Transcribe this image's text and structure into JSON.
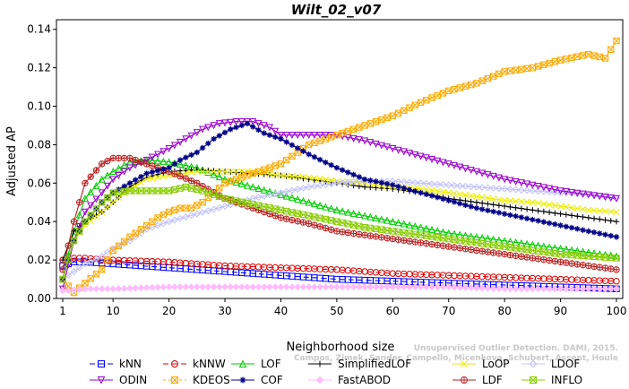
{
  "chart_data": {
    "type": "line",
    "title": "Wilt_02_v07",
    "xlabel": "Neighborhood size",
    "ylabel": "Adjusted AP",
    "xlim": [
      1,
      100
    ],
    "ylim": [
      0,
      0.145
    ],
    "xticks": [
      1,
      10,
      20,
      30,
      40,
      50,
      60,
      70,
      80,
      90,
      100
    ],
    "yticks": [
      0.0,
      0.02,
      0.04,
      0.06,
      0.08,
      0.1,
      0.12,
      0.14
    ],
    "ytick_labels": [
      "0.00",
      "0.02",
      "0.04",
      "0.06",
      "0.08",
      "0.10",
      "0.12",
      "0.14"
    ],
    "grid": false,
    "legend_position": "bottom",
    "watermark": [
      "Unsupervised Outlier Detection. DAMI, 2015.",
      "Campos, Zimek, Sander, Campello, Micenkova, Schubert, Assent, Houle"
    ],
    "series": [
      {
        "name": "kNN",
        "color": "#0000ff",
        "marker": "square",
        "dash": "6,4",
        "points": [
          [
            1,
            0.017
          ],
          [
            3,
            0.019
          ],
          [
            5,
            0.019
          ],
          [
            10,
            0.018
          ],
          [
            20,
            0.016
          ],
          [
            30,
            0.014
          ],
          [
            40,
            0.012
          ],
          [
            50,
            0.01
          ],
          [
            60,
            0.009
          ],
          [
            70,
            0.008
          ],
          [
            80,
            0.007
          ],
          [
            90,
            0.006
          ],
          [
            100,
            0.005
          ]
        ]
      },
      {
        "name": "kNNW",
        "color": "#dd0000",
        "marker": "circle",
        "dash": "6,4",
        "points": [
          [
            1,
            0.02
          ],
          [
            3,
            0.021
          ],
          [
            5,
            0.021
          ],
          [
            10,
            0.02
          ],
          [
            20,
            0.019
          ],
          [
            30,
            0.017
          ],
          [
            40,
            0.016
          ],
          [
            50,
            0.015
          ],
          [
            60,
            0.013
          ],
          [
            70,
            0.012
          ],
          [
            80,
            0.011
          ],
          [
            90,
            0.01
          ],
          [
            100,
            0.009
          ]
        ]
      },
      {
        "name": "LOF",
        "color": "#00cc00",
        "marker": "triangle-up",
        "dash": "none",
        "points": [
          [
            1,
            0.01
          ],
          [
            3,
            0.035
          ],
          [
            5,
            0.052
          ],
          [
            8,
            0.062
          ],
          [
            10,
            0.066
          ],
          [
            13,
            0.071
          ],
          [
            16,
            0.072
          ],
          [
            20,
            0.071
          ],
          [
            25,
            0.068
          ],
          [
            30,
            0.062
          ],
          [
            35,
            0.058
          ],
          [
            40,
            0.054
          ],
          [
            45,
            0.05
          ],
          [
            50,
            0.046
          ],
          [
            55,
            0.043
          ],
          [
            60,
            0.04
          ],
          [
            65,
            0.037
          ],
          [
            70,
            0.034
          ],
          [
            75,
            0.032
          ],
          [
            80,
            0.03
          ],
          [
            85,
            0.028
          ],
          [
            90,
            0.026
          ],
          [
            95,
            0.024
          ],
          [
            100,
            0.022
          ]
        ]
      },
      {
        "name": "SimplifiedLOF",
        "color": "#000000",
        "marker": "plus",
        "dash": "none",
        "points": [
          [
            1,
            0.02
          ],
          [
            3,
            0.035
          ],
          [
            5,
            0.04
          ],
          [
            8,
            0.045
          ],
          [
            10,
            0.05
          ],
          [
            13,
            0.058
          ],
          [
            16,
            0.063
          ],
          [
            20,
            0.066
          ],
          [
            25,
            0.067
          ],
          [
            30,
            0.066
          ],
          [
            35,
            0.065
          ],
          [
            40,
            0.064
          ],
          [
            45,
            0.062
          ],
          [
            50,
            0.06
          ],
          [
            55,
            0.058
          ],
          [
            60,
            0.057
          ],
          [
            65,
            0.055
          ],
          [
            70,
            0.052
          ],
          [
            75,
            0.05
          ],
          [
            80,
            0.048
          ],
          [
            85,
            0.046
          ],
          [
            90,
            0.044
          ],
          [
            95,
            0.042
          ],
          [
            100,
            0.04
          ]
        ]
      },
      {
        "name": "LoOP",
        "color": "#eeee00",
        "marker": "x",
        "dash": "none",
        "points": [
          [
            1,
            0.01
          ],
          [
            3,
            0.03
          ],
          [
            5,
            0.038
          ],
          [
            8,
            0.045
          ],
          [
            10,
            0.05
          ],
          [
            13,
            0.057
          ],
          [
            16,
            0.062
          ],
          [
            20,
            0.064
          ],
          [
            25,
            0.066
          ],
          [
            30,
            0.066
          ],
          [
            35,
            0.066
          ],
          [
            40,
            0.064
          ],
          [
            45,
            0.063
          ],
          [
            50,
            0.061
          ],
          [
            55,
            0.06
          ],
          [
            60,
            0.058
          ],
          [
            65,
            0.057
          ],
          [
            70,
            0.055
          ],
          [
            75,
            0.053
          ],
          [
            80,
            0.051
          ],
          [
            85,
            0.05
          ],
          [
            90,
            0.048
          ],
          [
            95,
            0.046
          ],
          [
            100,
            0.045
          ]
        ]
      },
      {
        "name": "LDOF",
        "color": "#c0c0ff",
        "marker": "diamond",
        "dash": "none",
        "points": [
          [
            1,
            0.01
          ],
          [
            3,
            0.014
          ],
          [
            5,
            0.018
          ],
          [
            8,
            0.022
          ],
          [
            10,
            0.026
          ],
          [
            13,
            0.03
          ],
          [
            16,
            0.036
          ],
          [
            20,
            0.04
          ],
          [
            25,
            0.044
          ],
          [
            30,
            0.048
          ],
          [
            35,
            0.052
          ],
          [
            40,
            0.055
          ],
          [
            45,
            0.058
          ],
          [
            50,
            0.06
          ],
          [
            55,
            0.061
          ],
          [
            60,
            0.061
          ],
          [
            65,
            0.06
          ],
          [
            70,
            0.059
          ],
          [
            75,
            0.058
          ],
          [
            80,
            0.057
          ],
          [
            85,
            0.056
          ],
          [
            90,
            0.055
          ],
          [
            95,
            0.054
          ],
          [
            100,
            0.052
          ]
        ]
      },
      {
        "name": "ODIN",
        "color": "#9900cc",
        "marker": "triangle-down",
        "dash": "none",
        "points": [
          [
            1,
            0.005
          ],
          [
            3,
            0.03
          ],
          [
            5,
            0.045
          ],
          [
            8,
            0.055
          ],
          [
            10,
            0.062
          ],
          [
            13,
            0.068
          ],
          [
            16,
            0.072
          ],
          [
            20,
            0.078
          ],
          [
            23,
            0.083
          ],
          [
            26,
            0.088
          ],
          [
            29,
            0.091
          ],
          [
            32,
            0.092
          ],
          [
            35,
            0.092
          ],
          [
            38,
            0.089
          ],
          [
            40,
            0.085
          ],
          [
            45,
            0.085
          ],
          [
            50,
            0.085
          ],
          [
            55,
            0.082
          ],
          [
            60,
            0.078
          ],
          [
            65,
            0.074
          ],
          [
            70,
            0.07
          ],
          [
            75,
            0.066
          ],
          [
            80,
            0.062
          ],
          [
            85,
            0.059
          ],
          [
            90,
            0.056
          ],
          [
            95,
            0.054
          ],
          [
            100,
            0.052
          ]
        ]
      },
      {
        "name": "KDEOS",
        "color": "#ffaa00",
        "marker": "box-x",
        "dash": "3,3",
        "points": [
          [
            1,
            0.01
          ],
          [
            3,
            0.003
          ],
          [
            5,
            0.008
          ],
          [
            8,
            0.015
          ],
          [
            10,
            0.025
          ],
          [
            13,
            0.032
          ],
          [
            16,
            0.038
          ],
          [
            18,
            0.042
          ],
          [
            20,
            0.045
          ],
          [
            22,
            0.047
          ],
          [
            24,
            0.047
          ],
          [
            26,
            0.05
          ],
          [
            28,
            0.055
          ],
          [
            30,
            0.06
          ],
          [
            35,
            0.065
          ],
          [
            40,
            0.07
          ],
          [
            45,
            0.08
          ],
          [
            50,
            0.085
          ],
          [
            55,
            0.09
          ],
          [
            60,
            0.095
          ],
          [
            65,
            0.102
          ],
          [
            70,
            0.108
          ],
          [
            75,
            0.112
          ],
          [
            80,
            0.118
          ],
          [
            85,
            0.12
          ],
          [
            90,
            0.124
          ],
          [
            95,
            0.127
          ],
          [
            98,
            0.125
          ],
          [
            100,
            0.134
          ]
        ]
      },
      {
        "name": "LDF",
        "color": "#bb2222",
        "marker": "circle-plus",
        "dash": "none",
        "points": [
          [
            1,
            0.015
          ],
          [
            3,
            0.04
          ],
          [
            5,
            0.06
          ],
          [
            8,
            0.07
          ],
          [
            10,
            0.073
          ],
          [
            13,
            0.073
          ],
          [
            16,
            0.07
          ],
          [
            20,
            0.066
          ],
          [
            25,
            0.06
          ],
          [
            30,
            0.052
          ],
          [
            35,
            0.047
          ],
          [
            40,
            0.042
          ],
          [
            45,
            0.039
          ],
          [
            50,
            0.035
          ],
          [
            55,
            0.033
          ],
          [
            60,
            0.031
          ],
          [
            65,
            0.029
          ],
          [
            70,
            0.027
          ],
          [
            75,
            0.025
          ],
          [
            80,
            0.023
          ],
          [
            85,
            0.021
          ],
          [
            90,
            0.019
          ],
          [
            95,
            0.017
          ],
          [
            100,
            0.015
          ]
        ]
      },
      {
        "name": "COF",
        "color": "#000088",
        "marker": "asterisk",
        "dash": "none",
        "points": [
          [
            1,
            0.01
          ],
          [
            3,
            0.03
          ],
          [
            5,
            0.04
          ],
          [
            8,
            0.05
          ],
          [
            10,
            0.055
          ],
          [
            13,
            0.06
          ],
          [
            16,
            0.065
          ],
          [
            20,
            0.068
          ],
          [
            22,
            0.072
          ],
          [
            25,
            0.076
          ],
          [
            28,
            0.083
          ],
          [
            31,
            0.088
          ],
          [
            34,
            0.091
          ],
          [
            37,
            0.086
          ],
          [
            40,
            0.083
          ],
          [
            45,
            0.075
          ],
          [
            50,
            0.068
          ],
          [
            55,
            0.062
          ],
          [
            60,
            0.059
          ],
          [
            65,
            0.055
          ],
          [
            70,
            0.051
          ],
          [
            75,
            0.047
          ],
          [
            80,
            0.044
          ],
          [
            85,
            0.041
          ],
          [
            90,
            0.038
          ],
          [
            95,
            0.035
          ],
          [
            100,
            0.032
          ]
        ]
      },
      {
        "name": "FastABOD",
        "color": "#ffbbff",
        "marker": "diamond-filled",
        "dash": "none",
        "points": [
          [
            1,
            0.004
          ],
          [
            5,
            0.005
          ],
          [
            10,
            0.005
          ],
          [
            20,
            0.006
          ],
          [
            30,
            0.006
          ],
          [
            40,
            0.006
          ],
          [
            50,
            0.006
          ],
          [
            60,
            0.006
          ],
          [
            70,
            0.006
          ],
          [
            80,
            0.005
          ],
          [
            90,
            0.005
          ],
          [
            100,
            0.005
          ]
        ]
      },
      {
        "name": "INFLO",
        "color": "#88cc00",
        "marker": "box-x",
        "dash": "none",
        "points": [
          [
            1,
            0.01
          ],
          [
            3,
            0.03
          ],
          [
            5,
            0.04
          ],
          [
            8,
            0.05
          ],
          [
            10,
            0.055
          ],
          [
            13,
            0.056
          ],
          [
            16,
            0.056
          ],
          [
            20,
            0.056
          ],
          [
            23,
            0.058
          ],
          [
            26,
            0.056
          ],
          [
            30,
            0.052
          ],
          [
            35,
            0.049
          ],
          [
            40,
            0.046
          ],
          [
            45,
            0.043
          ],
          [
            50,
            0.04
          ],
          [
            55,
            0.037
          ],
          [
            60,
            0.035
          ],
          [
            65,
            0.033
          ],
          [
            70,
            0.031
          ],
          [
            75,
            0.029
          ],
          [
            80,
            0.027
          ],
          [
            85,
            0.025
          ],
          [
            90,
            0.023
          ],
          [
            95,
            0.022
          ],
          [
            100,
            0.021
          ]
        ]
      }
    ],
    "legend_order": [
      [
        "kNN",
        "kNNW",
        "LOF",
        "SimplifiedLOF",
        "LoOP",
        "LDOF"
      ],
      [
        "ODIN",
        "KDEOS",
        "COF",
        "FastABOD",
        "LDF",
        "INFLO"
      ]
    ]
  }
}
